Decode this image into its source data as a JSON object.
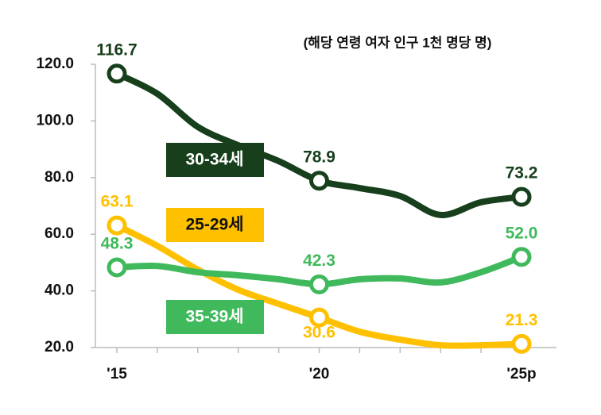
{
  "chart_data": {
    "type": "line",
    "subtitle": "(해당 연령 여자 인구 1천 명당 명)",
    "categories": [
      "'15",
      null,
      null,
      null,
      null,
      "'20",
      null,
      null,
      null,
      null,
      "'25p"
    ],
    "ylim": [
      20,
      120
    ],
    "yticks": [
      {
        "value": 20,
        "label": "20.0"
      },
      {
        "value": 40,
        "label": "40.0"
      },
      {
        "value": 60,
        "label": "60.0"
      },
      {
        "value": 80,
        "label": "80.0"
      },
      {
        "value": 100,
        "label": "100.0"
      },
      {
        "value": 120,
        "label": "120.0"
      }
    ],
    "series": [
      {
        "name": "30-34세",
        "color": "#173f1b",
        "values": [
          116.7,
          109.6,
          97.9,
          91.4,
          85.8,
          78.9,
          76.3,
          73.5,
          66.8,
          71.3,
          73.2
        ],
        "value_labels": [
          "116.7",
          null,
          null,
          null,
          null,
          "78.9",
          null,
          null,
          null,
          null,
          "73.2"
        ]
      },
      {
        "name": "25-29세",
        "color": "#ffc000",
        "values": [
          63.1,
          55.9,
          47.5,
          40.4,
          35.4,
          30.6,
          25.6,
          22.8,
          20.8,
          20.8,
          21.3
        ],
        "value_labels": [
          "63.1",
          null,
          null,
          null,
          null,
          "30.6",
          null,
          null,
          null,
          null,
          "21.3"
        ]
      },
      {
        "name": "35-39세",
        "color": "#40b95c",
        "values": [
          48.3,
          48.8,
          46.6,
          45.5,
          44.1,
          42.3,
          44.1,
          44.4,
          43.0,
          46.6,
          52.0
        ],
        "value_labels": [
          "48.3",
          null,
          null,
          null,
          null,
          "42.3",
          null,
          null,
          null,
          null,
          "52.0"
        ]
      }
    ]
  }
}
